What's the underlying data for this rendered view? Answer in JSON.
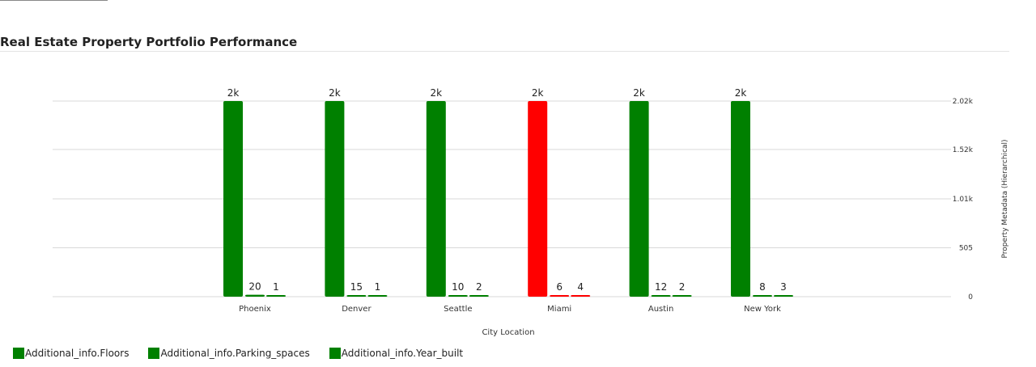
{
  "page": {
    "title": "Real Estate Property Portfolio Performance"
  },
  "colors": {
    "default_bar": "#008000",
    "highlight_bar": "#ff0000",
    "grid": "#d9d9d9"
  },
  "chart_data": {
    "type": "bar",
    "title": "Real Estate Property Portfolio Performance",
    "xlabel": "City Location",
    "ylabel": "Property Metadata (Hierarchical)",
    "categories": [
      "Phoenix",
      "Denver",
      "Seattle",
      "Miami",
      "Austin",
      "New York"
    ],
    "ylim": [
      0,
      2020
    ],
    "y_ticks": [
      "0",
      "505",
      "1.01k",
      "1.52k",
      "2.02k"
    ],
    "y_tick_values": [
      0,
      505,
      1010,
      1520,
      2020
    ],
    "y_axis_side": "right",
    "grid": true,
    "legend_position": "bottom-left",
    "highlight_category": "Miami",
    "series": [
      {
        "name": "Additional_info.Floors",
        "values": [
          2020,
          2020,
          2020,
          2020,
          2020,
          2020
        ],
        "labels": [
          "2k",
          "2k",
          "2k",
          "2k",
          "2k",
          "2k"
        ]
      },
      {
        "name": "Additional_info.Parking_spaces",
        "values": [
          20,
          15,
          10,
          6,
          12,
          8
        ],
        "labels": [
          "20",
          "15",
          "10",
          "6",
          "12",
          "8"
        ]
      },
      {
        "name": "Additional_info.Year_built",
        "values": [
          1,
          1,
          2,
          4,
          2,
          3
        ],
        "labels": [
          "1",
          "1",
          "2",
          "4",
          "2",
          "3"
        ]
      }
    ]
  }
}
